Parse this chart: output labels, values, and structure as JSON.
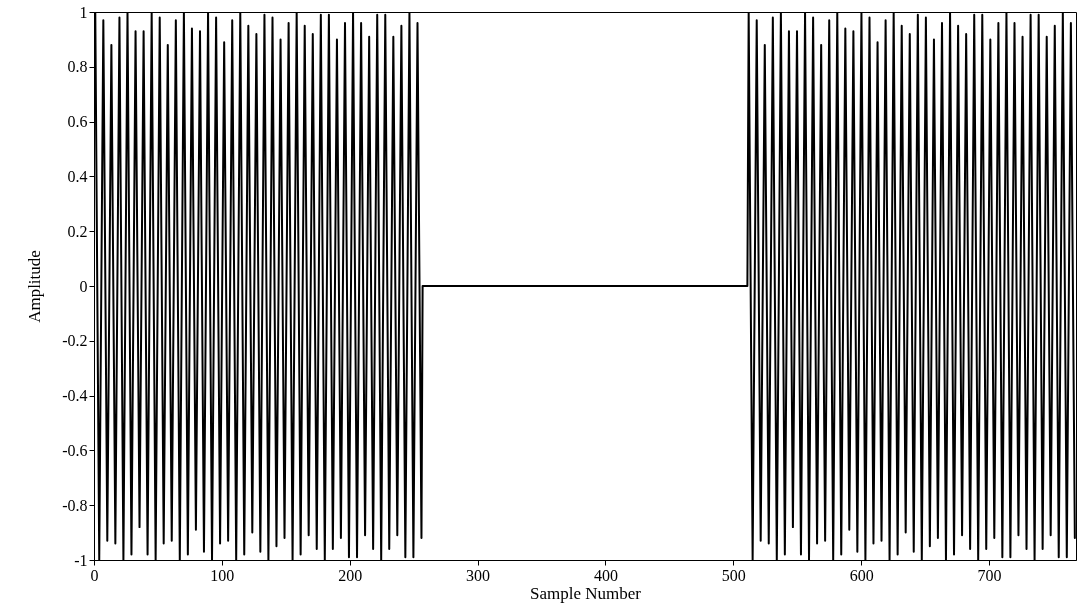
{
  "chart_data": {
    "type": "line",
    "xlabel": "Sample Number",
    "ylabel": "Amplitude",
    "xlim": [
      0,
      768
    ],
    "xticks": [
      0,
      100,
      200,
      300,
      400,
      500,
      600,
      700
    ],
    "ylim": [
      -1,
      1
    ],
    "yticks": [
      -1,
      -0.8,
      -0.6,
      -0.4,
      -0.2,
      0,
      0.2,
      0.4,
      0.6,
      0.8,
      1
    ],
    "grid": false,
    "marker": "none",
    "line_style": "solid",
    "series": [
      {
        "color": "#000000",
        "x": [
          1,
          4.1,
          7.3,
          10.4,
          13.6,
          16.7,
          19.9,
          23,
          26.2,
          29.3,
          32.5,
          35.6,
          38.8,
          41.9,
          45.1,
          48.2,
          51.4,
          54.5,
          57.7,
          60.8,
          64,
          67.1,
          70.3,
          73.4,
          76.6,
          79.7,
          82.9,
          86,
          89.2,
          92.3,
          95.5,
          98.6,
          101.8,
          104.9,
          108.1,
          111.2,
          114.4,
          117.5,
          120.7,
          123.8,
          127,
          130.1,
          133.3,
          136.4,
          139.6,
          142.7,
          145.9,
          149,
          152.2,
          155.3,
          158.5,
          161.6,
          164.8,
          167.9,
          171.1,
          174.2,
          177.4,
          180.5,
          183.7,
          186.8,
          190,
          193.1,
          196.3,
          199.4,
          202.6,
          205.7,
          208.9,
          212,
          215.2,
          218.3,
          221.5,
          224.6,
          227.8,
          230.9,
          234.1,
          237.2,
          240.4,
          243.5,
          246.7,
          249.8,
          253,
          256.1,
          257,
          511,
          512,
          515.1,
          518.3,
          521.4,
          524.6,
          527.7,
          530.9,
          534,
          537.2,
          540.3,
          543.5,
          546.6,
          549.8,
          552.9,
          556.1,
          559.2,
          562.4,
          565.5,
          568.7,
          571.8,
          575,
          578.1,
          581.3,
          584.4,
          587.6,
          590.7,
          593.9,
          597,
          600.2,
          603.3,
          606.5,
          609.6,
          612.8,
          615.9,
          619.1,
          622.2,
          625.4,
          628.5,
          631.7,
          634.8,
          638,
          641.1,
          644.3,
          647.4,
          650.6,
          653.7,
          656.9,
          660,
          663.2,
          666.3,
          669.5,
          672.6,
          675.8,
          678.9,
          682.1,
          685.2,
          688.4,
          691.5,
          694.7,
          697.8,
          701,
          704.1,
          707.3,
          710.4,
          713.6,
          716.7,
          719.9,
          723,
          726.2,
          729.3,
          732.5,
          735.6,
          738.8,
          741.9,
          745.1,
          748.2,
          751.4,
          754.5,
          757.7,
          760.8,
          764,
          767.1
        ],
        "values": [
          1,
          -1,
          0.97,
          -0.93,
          0.88,
          -0.94,
          0.98,
          -1,
          1,
          -0.98,
          0.93,
          -0.88,
          0.93,
          -0.98,
          1,
          -1,
          0.98,
          -0.94,
          0.88,
          -0.93,
          0.97,
          -1,
          1,
          -0.98,
          0.94,
          -0.89,
          0.93,
          -0.97,
          1,
          -1,
          0.98,
          -0.94,
          0.89,
          -0.93,
          0.97,
          -1,
          1,
          -0.98,
          0.95,
          -0.9,
          0.92,
          -0.97,
          0.99,
          -1,
          0.98,
          -0.95,
          0.9,
          -0.92,
          0.96,
          -1,
          1,
          -0.98,
          0.95,
          -0.91,
          0.92,
          -0.96,
          0.99,
          -1,
          0.99,
          -0.96,
          0.9,
          -0.92,
          0.96,
          -0.99,
          1,
          -0.99,
          0.96,
          -0.91,
          0.91,
          -0.96,
          0.99,
          -1,
          0.99,
          -0.96,
          0.91,
          -0.91,
          0.95,
          -0.99,
          1,
          -0.99,
          0.96,
          -0.92,
          0,
          0,
          1,
          -1,
          0.97,
          -0.93,
          0.88,
          -0.94,
          0.98,
          -1,
          1,
          -0.98,
          0.93,
          -0.88,
          0.93,
          -0.98,
          1,
          -1,
          0.98,
          -0.94,
          0.88,
          -0.93,
          0.97,
          -1,
          1,
          -0.98,
          0.94,
          -0.89,
          0.93,
          -0.97,
          1,
          -1,
          0.98,
          -0.94,
          0.89,
          -0.93,
          0.97,
          -1,
          1,
          -0.98,
          0.95,
          -0.9,
          0.92,
          -0.97,
          0.99,
          -1,
          0.98,
          -0.95,
          0.9,
          -0.92,
          0.96,
          -1,
          1,
          -0.98,
          0.95,
          -0.91,
          0.92,
          -0.96,
          0.99,
          -1,
          0.99,
          -0.96,
          0.9,
          -0.92,
          0.96,
          -0.99,
          1,
          -0.99,
          0.96,
          -0.91,
          0.91,
          -0.96,
          0.99,
          -1,
          0.99,
          -0.96,
          0.91,
          -0.91,
          0.95,
          -0.99,
          1,
          -0.99,
          0.96,
          -0.92
        ]
      }
    ]
  }
}
